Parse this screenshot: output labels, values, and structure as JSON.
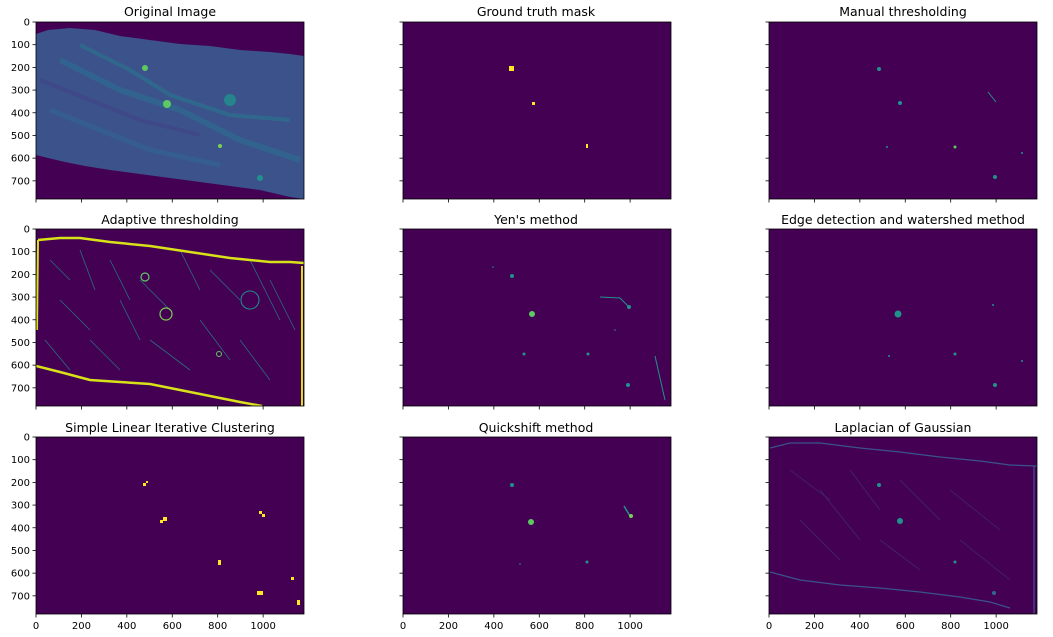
{
  "figure": {
    "panels": [
      {
        "title": "Original Image",
        "image": "original-image"
      },
      {
        "title": "Ground truth mask",
        "image": "ground-truth-mask"
      },
      {
        "title": "Manual thresholding",
        "image": "manual-thresholding-mask"
      },
      {
        "title": "Adaptive thresholding",
        "image": "adaptive-thresholding-mask"
      },
      {
        "title": "Yen's method",
        "image": "yen-mask"
      },
      {
        "title": "Edge detection and watershed method",
        "image": "edge-watershed-mask"
      },
      {
        "title": "Simple Linear Iterative Clustering",
        "image": "slic-mask"
      },
      {
        "title": "Quickshift method",
        "image": "quickshift-mask"
      },
      {
        "title": "Laplacian of Gaussian",
        "image": "log-mask"
      }
    ],
    "y_ticks": [
      "0",
      "100",
      "200",
      "300",
      "400",
      "500",
      "600",
      "700"
    ],
    "x_ticks": [
      "0",
      "200",
      "400",
      "600",
      "800",
      "1000"
    ],
    "colormap": {
      "background": "#440154",
      "low": "#3b528b",
      "mid": "#21918c",
      "high": "#5ec962",
      "peak": "#fde725"
    }
  }
}
